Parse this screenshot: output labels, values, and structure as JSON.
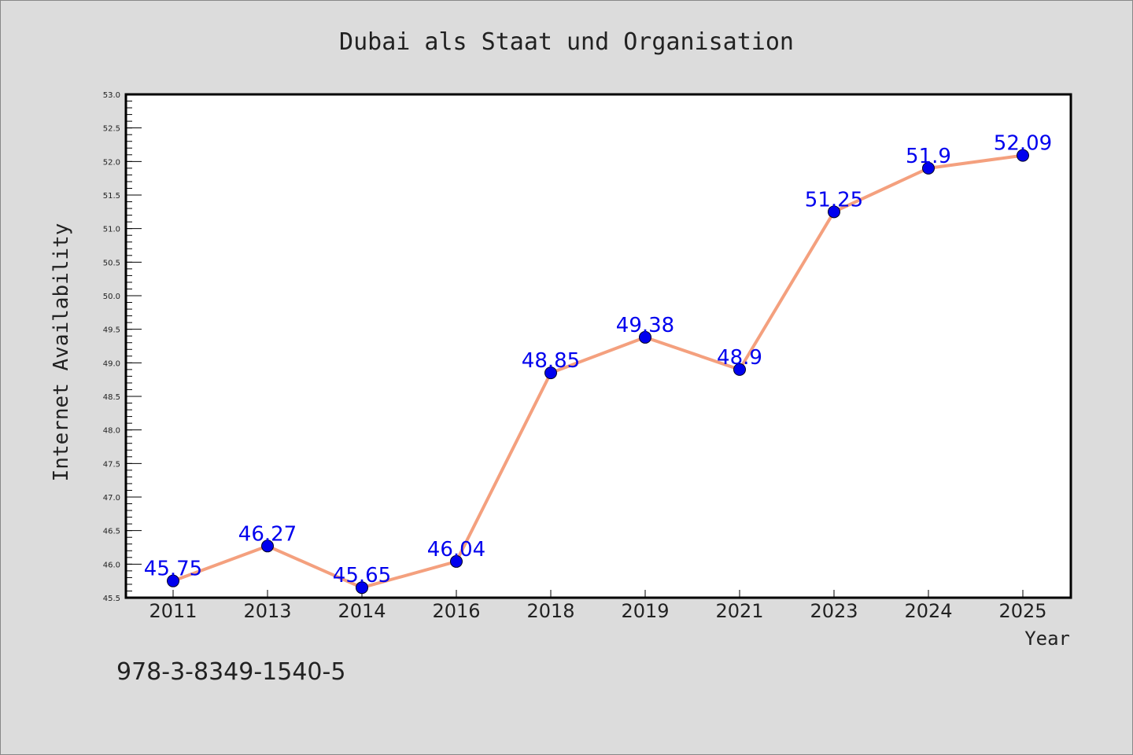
{
  "chart_data": {
    "type": "line",
    "title": "Dubai als Staat und Organisation",
    "xlabel": "Year",
    "ylabel": "Internet Availability",
    "categories": [
      "2011",
      "2013",
      "2014",
      "2016",
      "2018",
      "2019",
      "2021",
      "2023",
      "2024",
      "2025"
    ],
    "series": [
      {
        "values": [
          45.75,
          46.27,
          45.65,
          46.04,
          48.85,
          49.38,
          48.9,
          51.25,
          51.9,
          52.09
        ],
        "labels": [
          "45.75",
          "46.27",
          "45.65",
          "46.04",
          "48.85",
          "49.38",
          "48.9",
          "51.25",
          "51.9",
          "52.09"
        ],
        "line_color": "#f4a07e",
        "marker_color": "#0000ee",
        "label_color": "#0000ee"
      }
    ],
    "ylim": [
      45.5,
      53.0
    ],
    "yticks": [
      "45.5",
      "46.0",
      "46.5",
      "47.0",
      "47.5",
      "48.0",
      "48.5",
      "49.0",
      "49.5",
      "50.0",
      "50.5",
      "51.0",
      "51.5",
      "52.0",
      "52.5",
      "53.0"
    ],
    "grid": false,
    "legend": "none"
  },
  "footer": {
    "isbn": "978-3-8349-1540-5"
  },
  "colors": {
    "background": "#dcdcdc",
    "plot_area": "#ffffff",
    "axis": "#000000"
  }
}
